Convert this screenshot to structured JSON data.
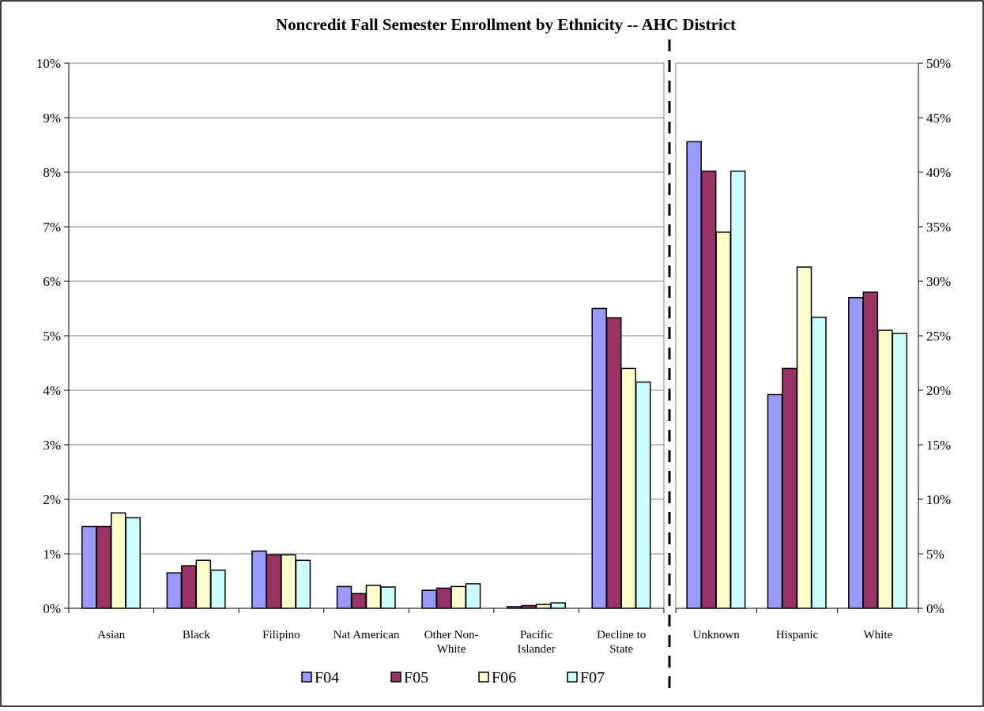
{
  "chart_data": {
    "type": "bar",
    "title": "Noncredit Fall Semester Enrollment by Ethnicity -- AHC District",
    "legend": {
      "placement": "bottom"
    },
    "series_meta": [
      {
        "name": "F04",
        "color": "#9999ff"
      },
      {
        "name": "F05",
        "color": "#993366"
      },
      {
        "name": "F06",
        "color": "#ffffcc"
      },
      {
        "name": "F07",
        "color": "#ccffff"
      }
    ],
    "panels": [
      {
        "axis_side": "left",
        "ylim": [
          0,
          10
        ],
        "yticks": [
          "0%",
          "1%",
          "2%",
          "3%",
          "4%",
          "5%",
          "6%",
          "7%",
          "8%",
          "9%",
          "10%"
        ],
        "grid": true,
        "categories": [
          [
            "Asian"
          ],
          [
            "Black"
          ],
          [
            "Filipino"
          ],
          [
            "Nat American"
          ],
          [
            "Other Non-",
            "White"
          ],
          [
            "Pacific",
            "Islander"
          ],
          [
            "Decline to",
            "State"
          ]
        ],
        "series": [
          {
            "name": "F04",
            "values": [
              1.5,
              0.65,
              1.05,
              0.4,
              0.33,
              0.03,
              5.5
            ]
          },
          {
            "name": "F05",
            "values": [
              1.5,
              0.78,
              0.98,
              0.27,
              0.37,
              0.05,
              5.33
            ]
          },
          {
            "name": "F06",
            "values": [
              1.75,
              0.88,
              0.98,
              0.42,
              0.4,
              0.07,
              4.4
            ]
          },
          {
            "name": "F07",
            "values": [
              1.66,
              0.7,
              0.88,
              0.39,
              0.45,
              0.1,
              4.15
            ]
          }
        ]
      },
      {
        "axis_side": "right",
        "ylim": [
          0,
          50
        ],
        "yticks": [
          "0%",
          "5%",
          "10%",
          "15%",
          "20%",
          "25%",
          "30%",
          "35%",
          "40%",
          "45%",
          "50%"
        ],
        "grid": false,
        "categories": [
          [
            "Unknown"
          ],
          [
            "Hispanic"
          ],
          [
            "White"
          ]
        ],
        "series": [
          {
            "name": "F04",
            "values": [
              42.8,
              19.6,
              28.5
            ]
          },
          {
            "name": "F05",
            "values": [
              40.1,
              22.0,
              29.0
            ]
          },
          {
            "name": "F06",
            "values": [
              34.5,
              31.3,
              25.5
            ]
          },
          {
            "name": "F07",
            "values": [
              40.1,
              26.7,
              25.2
            ]
          }
        ]
      }
    ]
  }
}
